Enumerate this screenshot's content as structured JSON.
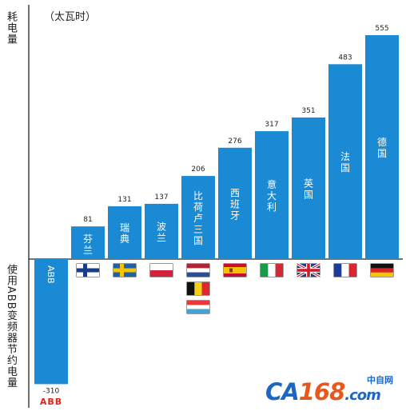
{
  "unit_label": "（太瓦时）",
  "y_label_top": "耗电量",
  "y_label_bottom": "使用ABB变频器节约电量",
  "watermark": {
    "main": "CA168",
    "main_prefix": "CA",
    "main_num": "168",
    "main_suffix": ".com",
    "sub": "中自网"
  },
  "colors": {
    "bar": "#1a8ad5",
    "axis": "#222222",
    "abb_logo": "#e2231a",
    "watermark_blue": "#1c66c4",
    "watermark_orange": "#e8581c"
  },
  "chart_data": {
    "type": "bar",
    "title": "",
    "ylabel": "耗电量",
    "unit": "（太瓦时）",
    "categories": [
      "ABB",
      "芬兰",
      "瑞典",
      "波兰",
      "比荷卢三国",
      "西班牙",
      "意大利",
      "英国",
      "法国",
      "德国"
    ],
    "values": [
      -310,
      81,
      131,
      137,
      206,
      276,
      317,
      351,
      483,
      555
    ],
    "value_labels": [
      "-310",
      "81",
      "131",
      "137",
      "206",
      "276",
      "317",
      "351",
      "483",
      "555"
    ],
    "flags": [
      [],
      [
        "finland-flag"
      ],
      [
        "sweden-flag"
      ],
      [
        "poland-flag"
      ],
      [
        "netherlands-flag",
        "belgium-flag",
        "luxembourg-flag"
      ],
      [
        "spain-flag"
      ],
      [
        "italy-flag"
      ],
      [
        "uk-flag"
      ],
      [
        "france-flag"
      ],
      [
        "germany-flag"
      ]
    ],
    "abb_logo_text": "ABB",
    "ylim": [
      -310,
      555
    ],
    "grid": false,
    "legend": "none"
  }
}
